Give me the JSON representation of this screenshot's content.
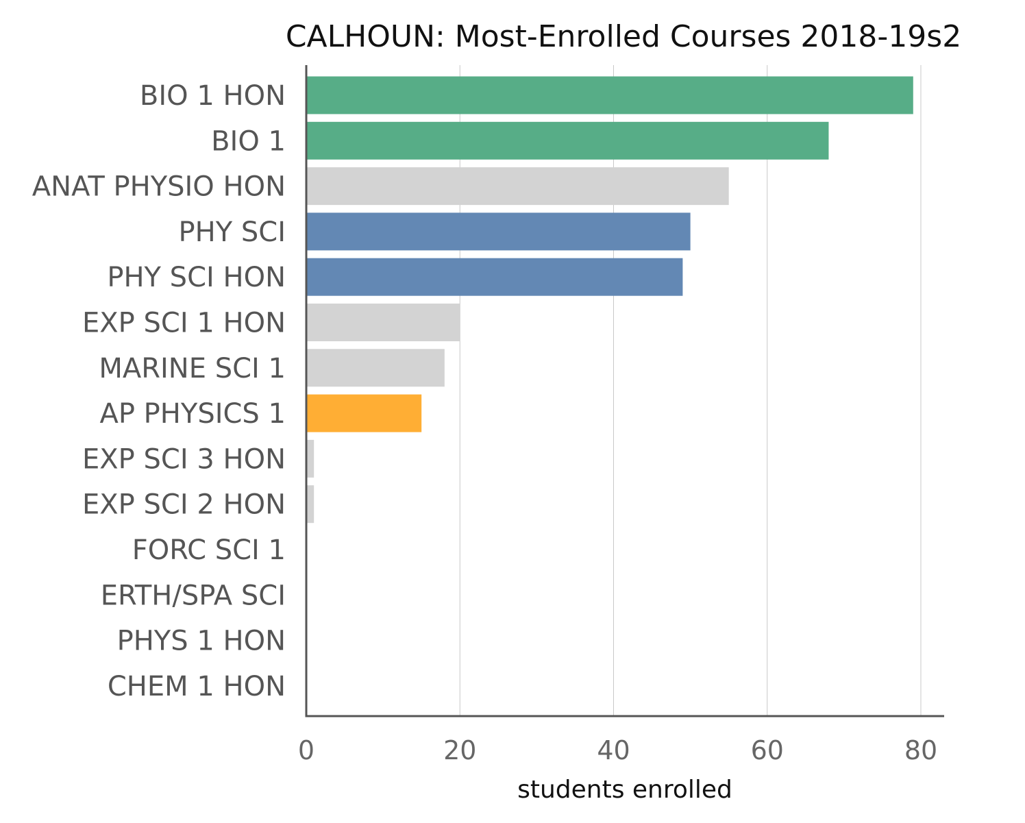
{
  "chart_data": {
    "type": "bar",
    "orientation": "horizontal",
    "title": "CALHOUN: Most-Enrolled Courses 2018-19s2",
    "xlabel": "students enrolled",
    "ylabel": "",
    "xlim": [
      0,
      83
    ],
    "xticks": [
      0,
      20,
      40,
      60,
      80
    ],
    "grid": true,
    "categories": [
      "BIO 1 HON",
      "BIO 1",
      "ANAT PHYSIO HON",
      "PHY SCI",
      "PHY SCI HON",
      "EXP SCI 1 HON",
      "MARINE SCI 1",
      "AP PHYSICS 1",
      "EXP SCI 3 HON",
      "EXP SCI 2 HON",
      "FORC SCI 1",
      "ERTH/SPA SCI",
      "PHYS 1 HON",
      "CHEM 1 HON"
    ],
    "values": [
      79,
      68,
      55,
      50,
      49,
      20,
      18,
      15,
      1,
      1,
      0,
      0,
      0,
      0
    ],
    "colors": [
      "#57ad87",
      "#57ad87",
      "#d3d3d3",
      "#6388b4",
      "#6388b4",
      "#d3d3d3",
      "#d3d3d3",
      "#ffae34",
      "#d3d3d3",
      "#d3d3d3",
      "#d3d3d3",
      "#d3d3d3",
      "#d3d3d3",
      "#d3d3d3"
    ],
    "axis_color": "#555555",
    "grid_color": "#c8c8c8"
  }
}
